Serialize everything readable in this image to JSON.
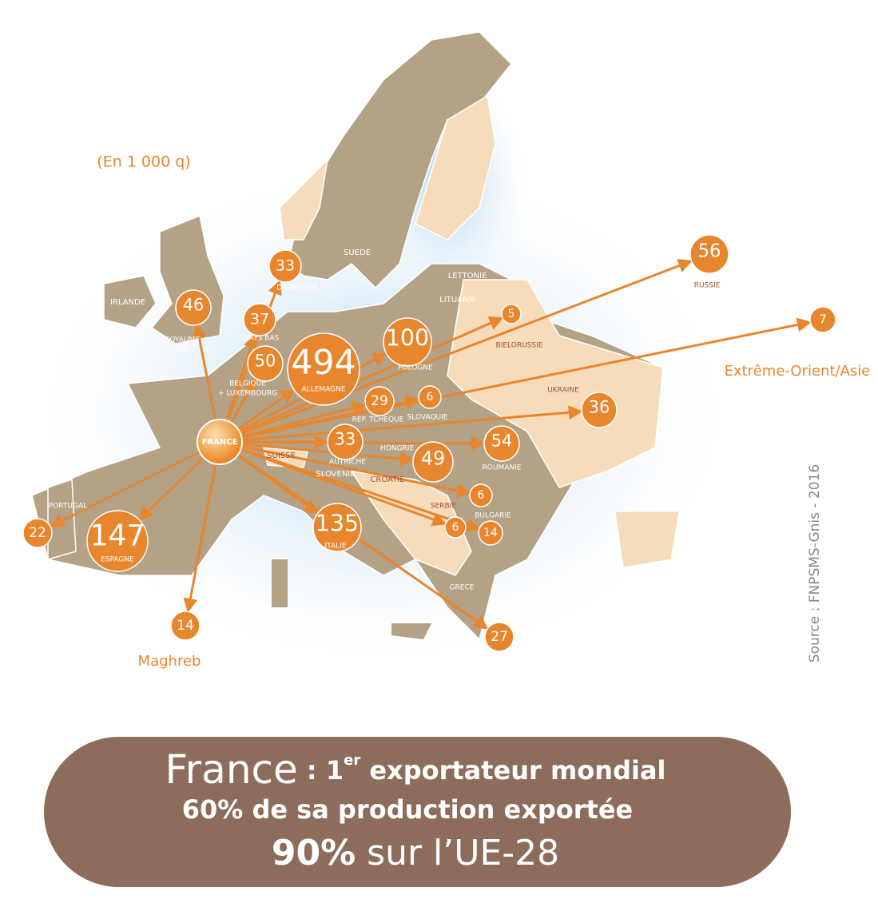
{
  "unit": "(En 1 000 q)",
  "origin": "FRANCE",
  "flows": [
    {
      "value": 46,
      "label": [
        "ROYAUME",
        "UNI"
      ]
    },
    {
      "value": 33,
      "label": [
        "DANEMARK"
      ]
    },
    {
      "value": 37,
      "label": [
        "PAYS BAS"
      ]
    },
    {
      "value": 50,
      "label": [
        "BELGIQUE",
        "+ LUXEMBOURG"
      ]
    },
    {
      "value": 494,
      "label": [
        "ALLEMAGNE"
      ]
    },
    {
      "value": 100,
      "label": [
        "POLOGNE"
      ]
    },
    {
      "value": 5,
      "label": [
        "BIELORUSSIE"
      ]
    },
    {
      "value": 56,
      "label": [
        "RUSSIE"
      ]
    },
    {
      "value": 7,
      "label": [
        "Extrême-Orient/Asie"
      ]
    },
    {
      "value": 29,
      "label": [
        "REP. TCHEQUE"
      ]
    },
    {
      "value": 6,
      "label": [
        "SLOVAQUIE"
      ]
    },
    {
      "value": 36,
      "label": [
        "UKRAINE"
      ]
    },
    {
      "value": 33,
      "label": [
        "AUTRICHE"
      ]
    },
    {
      "value": 49,
      "label": [
        "HONGRIE"
      ]
    },
    {
      "value": 54,
      "label": [
        "ROUMANIE"
      ]
    },
    {
      "value": 6,
      "label": [
        "SERBIE"
      ]
    },
    {
      "value": 6
    },
    {
      "value": 14,
      "label": [
        "BULGARIE"
      ]
    },
    {
      "value": 147,
      "label": [
        "ESPAGNE"
      ]
    },
    {
      "value": 22,
      "label": [
        "PORTUGAL"
      ]
    },
    {
      "value": 135,
      "label": [
        "ITALIE"
      ]
    },
    {
      "value": 14,
      "label": [
        "Maghreb"
      ]
    },
    {
      "value": 27,
      "label": [
        "GRECE"
      ]
    }
  ],
  "places": [
    "IRLANDE",
    "SUEDE",
    "LETTONIE",
    "LITUANIE",
    "SLOVENIE",
    "CROATIE",
    "SUISSE"
  ],
  "source": "Source : FNPSMS-Gnis - 2016",
  "banner": {
    "line1": [
      "France",
      " : 1",
      "er",
      " exportateur mondial"
    ],
    "line2": "60% de sa production exportée",
    "line3": [
      "90%",
      " sur l’UE-28"
    ]
  }
}
